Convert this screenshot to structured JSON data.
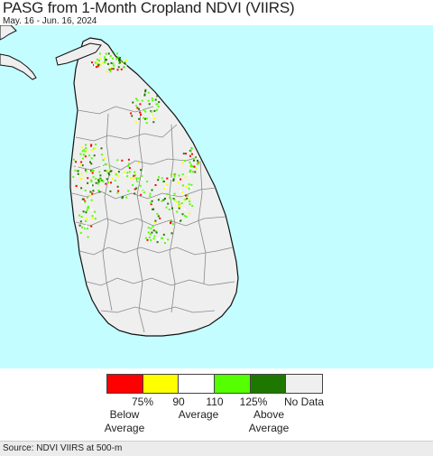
{
  "title": "PASG from 1-Month Cropland NDVI (VIIRS)",
  "subtitle": "May. 16 - Jun. 16, 2024",
  "colors": {
    "water": "#c3fdff",
    "land": "#efefef",
    "border": "#888888",
    "coast": "#111111",
    "red": "#ff0000",
    "yellow": "#ffff00",
    "white": "#ffffff",
    "light_green": "#55ff00",
    "dark_green": "#1e7800",
    "no_data": "#f0eff0"
  },
  "legend": {
    "swatches": [
      {
        "name": "below-75",
        "color": "#ff0000"
      },
      {
        "name": "75-90",
        "color": "#ffff00"
      },
      {
        "name": "90-110",
        "color": "#ffffff"
      },
      {
        "name": "110-125",
        "color": "#55ff00"
      },
      {
        "name": "above-125",
        "color": "#1e7800"
      },
      {
        "name": "no-data",
        "color": "#f0eff0"
      }
    ],
    "ticks": [
      "75%",
      "90",
      "110",
      "125%",
      "No Data"
    ],
    "below_label_1": "Below",
    "below_label_2": "Average",
    "average_label": "Average",
    "above_label_1": "Above",
    "above_label_2": "Average"
  },
  "source": "Source: NDVI VIIRS at 500-m"
}
